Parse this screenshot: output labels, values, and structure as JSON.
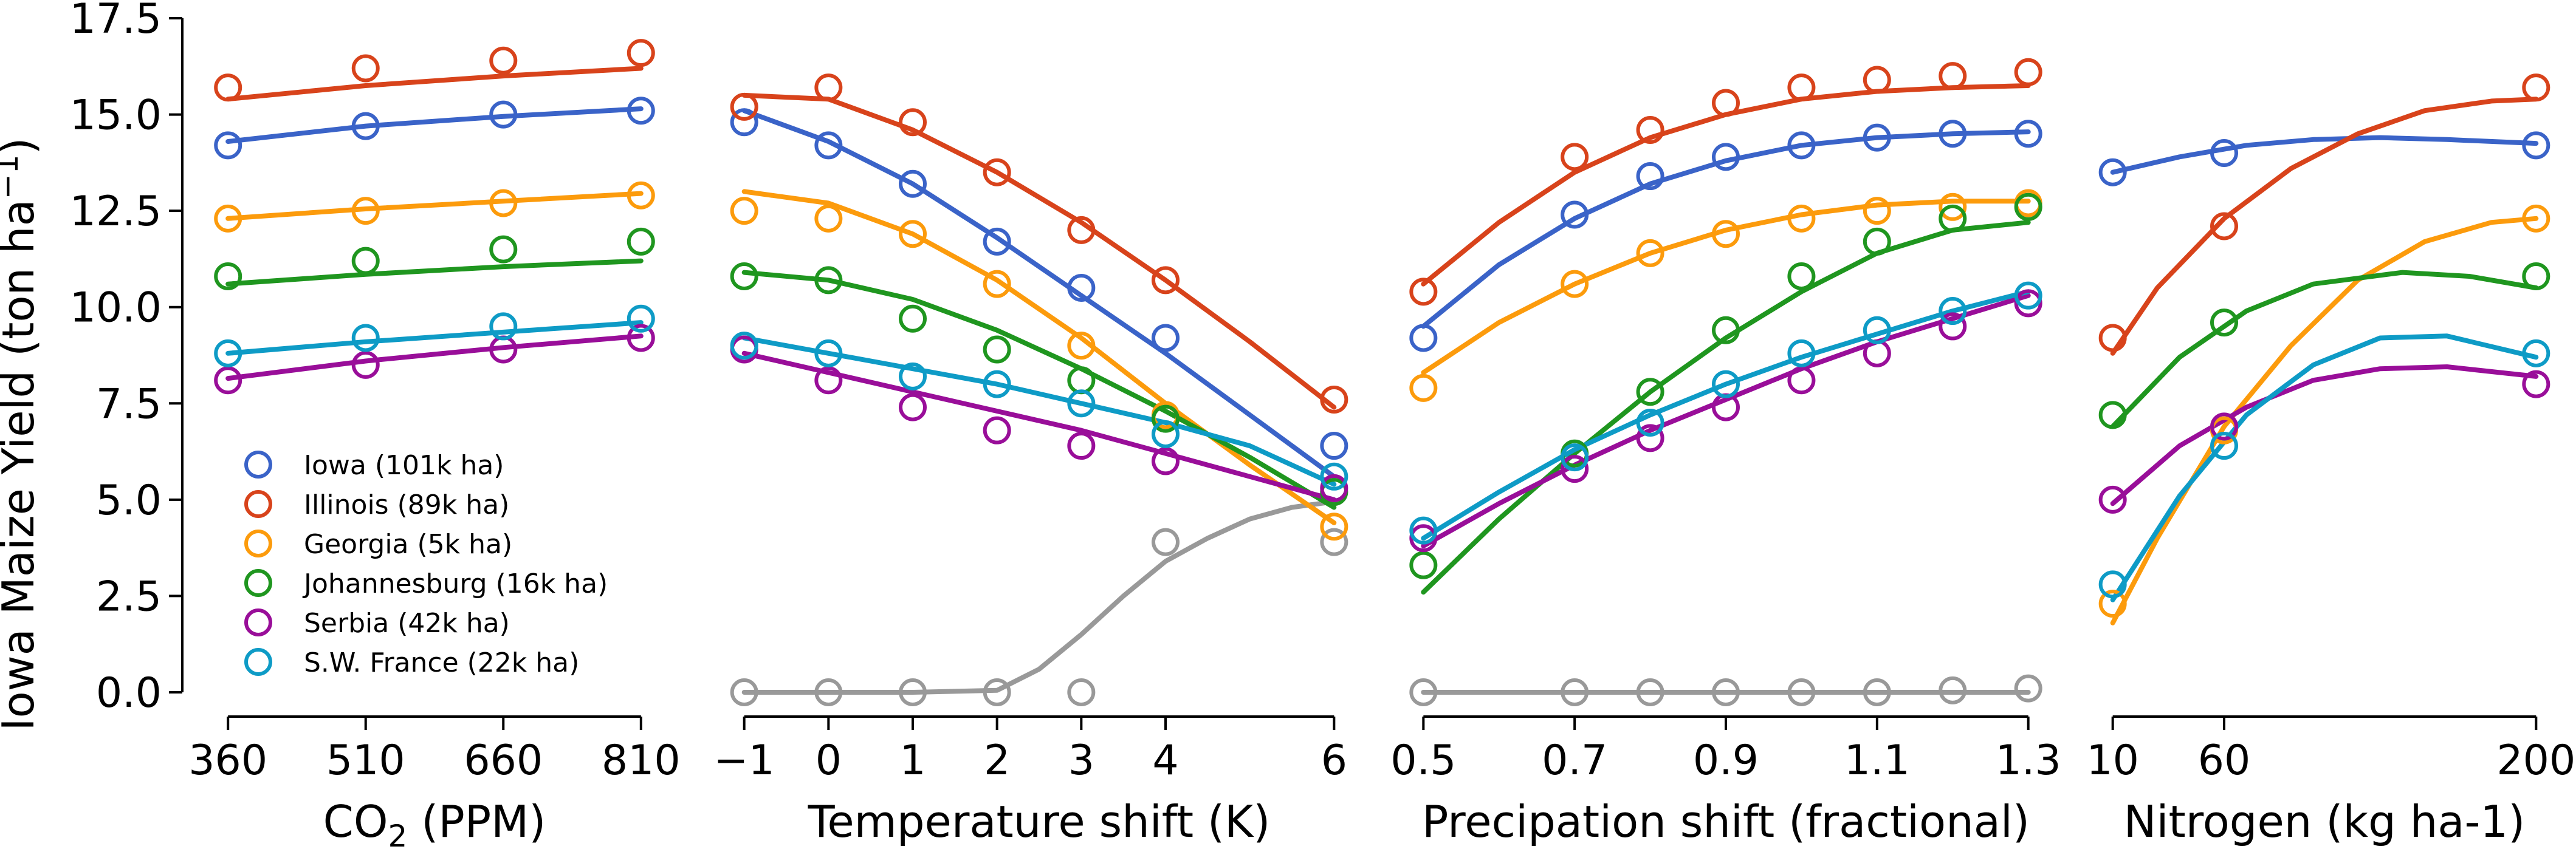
{
  "chart_data": {
    "type": "scatter",
    "ylabel": "Iowa Maize Yield (ton ha",
    "ylabel_sup": "−1",
    "ylabel_close": ")",
    "ylim": [
      0,
      17.5
    ],
    "yticks": [
      0.0,
      2.5,
      5.0,
      7.5,
      10.0,
      12.5,
      15.0,
      17.5
    ],
    "ytick_labels": [
      "0.0",
      "2.5",
      "5.0",
      "7.5",
      "10.0",
      "12.5",
      "15.0",
      "17.5"
    ],
    "grid": false,
    "legend_position": "lower-left of first panel",
    "series": [
      {
        "name": "Iowa (101k ha)",
        "color": "#3a63c8"
      },
      {
        "name": "Illinois (89k ha)",
        "color": "#d8431b"
      },
      {
        "name": "Georgia (5k ha)",
        "color": "#fc9b0c"
      },
      {
        "name": "Johannesburg (16k ha)",
        "color": "#1f961f"
      },
      {
        "name": "Serbia (42k ha)",
        "color": "#990e99"
      },
      {
        "name": "S.W. France (22k ha)",
        "color": "#0e9bc6"
      }
    ],
    "extra_series_color": "#999999",
    "panels": [
      {
        "xlabel_main": "CO",
        "xlabel_sub": "2",
        "xlabel_rest": " (PPM)",
        "xlim": [
          340,
          830
        ],
        "xticks": [
          360,
          510,
          660,
          810
        ],
        "xtick_labels": [
          "360",
          "510",
          "660",
          "810"
        ],
        "x": [
          360,
          510,
          660,
          810
        ],
        "points": [
          [
            14.2,
            14.7,
            15.0,
            15.1
          ],
          [
            15.7,
            16.2,
            16.4,
            16.6
          ],
          [
            12.3,
            12.5,
            12.7,
            12.9
          ],
          [
            10.8,
            11.2,
            11.5,
            11.7
          ],
          [
            8.1,
            8.5,
            8.9,
            9.2
          ],
          [
            8.8,
            9.2,
            9.5,
            9.7
          ]
        ],
        "fits": [
          [
            [
              360,
              14.3
            ],
            [
              510,
              14.7
            ],
            [
              660,
              14.95
            ],
            [
              810,
              15.15
            ]
          ],
          [
            [
              360,
              15.4
            ],
            [
              510,
              15.75
            ],
            [
              660,
              16.0
            ],
            [
              810,
              16.2
            ]
          ],
          [
            [
              360,
              12.3
            ],
            [
              510,
              12.55
            ],
            [
              660,
              12.75
            ],
            [
              810,
              12.95
            ]
          ],
          [
            [
              360,
              10.6
            ],
            [
              510,
              10.85
            ],
            [
              660,
              11.05
            ],
            [
              810,
              11.2
            ]
          ],
          [
            [
              360,
              8.15
            ],
            [
              510,
              8.6
            ],
            [
              660,
              8.95
            ],
            [
              810,
              9.25
            ]
          ],
          [
            [
              360,
              8.8
            ],
            [
              510,
              9.1
            ],
            [
              660,
              9.35
            ],
            [
              810,
              9.6
            ]
          ]
        ],
        "extra_points": [],
        "extra_fit": []
      },
      {
        "xlabel_main": "Temperature shift (K)",
        "xlabel_sub": "",
        "xlabel_rest": "",
        "xlim": [
          -1.25,
          6.25
        ],
        "xticks": [
          -1,
          0,
          1,
          2,
          3,
          4,
          6
        ],
        "xtick_labels": [
          "−1",
          "0",
          "1",
          "2",
          "3",
          "4",
          "6"
        ],
        "x": [
          -1,
          0,
          1,
          2,
          3,
          4,
          6
        ],
        "points": [
          [
            14.8,
            14.2,
            13.2,
            11.7,
            10.5,
            9.2,
            6.4
          ],
          [
            15.2,
            15.7,
            14.8,
            13.5,
            12.0,
            10.7,
            7.6
          ],
          [
            12.5,
            12.3,
            11.9,
            10.6,
            9.0,
            7.2,
            4.3
          ],
          [
            10.8,
            10.7,
            9.7,
            8.9,
            8.1,
            7.1,
            5.2
          ],
          [
            8.9,
            8.1,
            7.4,
            6.8,
            6.4,
            6.0,
            5.3
          ],
          [
            9.0,
            8.8,
            8.2,
            8.0,
            7.5,
            6.7,
            5.6
          ]
        ],
        "fits": [
          [
            [
              -1,
              15.1
            ],
            [
              0,
              14.3
            ],
            [
              1,
              13.2
            ],
            [
              2,
              11.8
            ],
            [
              3,
              10.3
            ],
            [
              4,
              8.8
            ],
            [
              5,
              7.2
            ],
            [
              6,
              5.6
            ]
          ],
          [
            [
              -1,
              15.5
            ],
            [
              0,
              15.4
            ],
            [
              1,
              14.6
            ],
            [
              2,
              13.5
            ],
            [
              3,
              12.2
            ],
            [
              4,
              10.7
            ],
            [
              5,
              9.1
            ],
            [
              6,
              7.4
            ]
          ],
          [
            [
              -1,
              13.0
            ],
            [
              0,
              12.7
            ],
            [
              1,
              11.9
            ],
            [
              2,
              10.7
            ],
            [
              3,
              9.2
            ],
            [
              4,
              7.5
            ],
            [
              5,
              5.9
            ],
            [
              6,
              4.4
            ]
          ],
          [
            [
              -1,
              10.9
            ],
            [
              0,
              10.7
            ],
            [
              1,
              10.2
            ],
            [
              2,
              9.4
            ],
            [
              3,
              8.4
            ],
            [
              4,
              7.3
            ],
            [
              5,
              6.1
            ],
            [
              6,
              4.8
            ]
          ],
          [
            [
              -1,
              8.8
            ],
            [
              0,
              8.3
            ],
            [
              1,
              7.8
            ],
            [
              2,
              7.3
            ],
            [
              3,
              6.8
            ],
            [
              4,
              6.2
            ],
            [
              5,
              5.6
            ],
            [
              6,
              5.0
            ]
          ],
          [
            [
              -1,
              9.2
            ],
            [
              0,
              8.8
            ],
            [
              1,
              8.4
            ],
            [
              2,
              8.0
            ],
            [
              3,
              7.5
            ],
            [
              4,
              7.0
            ],
            [
              5,
              6.4
            ],
            [
              6,
              5.4
            ]
          ]
        ],
        "extra_points": [
          0.0,
          0.0,
          0.0,
          0.0,
          0.0,
          3.9,
          3.9
        ],
        "extra_fit": [
          [
            -1,
            0.0
          ],
          [
            0,
            0.0
          ],
          [
            1,
            0.0
          ],
          [
            2,
            0.05
          ],
          [
            2.5,
            0.6
          ],
          [
            3,
            1.5
          ],
          [
            3.5,
            2.5
          ],
          [
            4,
            3.4
          ],
          [
            4.5,
            4.0
          ],
          [
            5,
            4.5
          ],
          [
            5.5,
            4.8
          ],
          [
            6,
            4.95
          ]
        ]
      },
      {
        "xlabel_main": "Precipation shift (fractional)",
        "xlabel_sub": "",
        "xlabel_rest": "",
        "xlim": [
          0.47,
          1.33
        ],
        "xticks": [
          0.5,
          0.7,
          0.9,
          1.1,
          1.3
        ],
        "xtick_labels": [
          "0.5",
          "0.7",
          "0.9",
          "1.1",
          "1.3"
        ],
        "x": [
          0.5,
          0.7,
          0.8,
          0.9,
          1.0,
          1.1,
          1.2,
          1.3
        ],
        "points": [
          [
            9.2,
            12.4,
            13.4,
            13.9,
            14.2,
            14.4,
            14.5,
            14.5
          ],
          [
            10.4,
            13.9,
            14.6,
            15.3,
            15.7,
            15.9,
            16.0,
            16.1
          ],
          [
            7.9,
            10.6,
            11.4,
            11.9,
            12.3,
            12.5,
            12.6,
            12.7
          ],
          [
            3.3,
            6.2,
            7.8,
            9.4,
            10.8,
            11.7,
            12.3,
            12.6
          ],
          [
            4.0,
            5.8,
            6.6,
            7.4,
            8.1,
            8.8,
            9.5,
            10.1
          ],
          [
            4.2,
            6.1,
            7.0,
            8.0,
            8.8,
            9.4,
            9.9,
            10.3
          ]
        ],
        "fits": [
          [
            [
              0.5,
              9.5
            ],
            [
              0.6,
              11.1
            ],
            [
              0.7,
              12.3
            ],
            [
              0.8,
              13.2
            ],
            [
              0.9,
              13.8
            ],
            [
              1.0,
              14.2
            ],
            [
              1.1,
              14.4
            ],
            [
              1.2,
              14.5
            ],
            [
              1.3,
              14.55
            ]
          ],
          [
            [
              0.5,
              10.6
            ],
            [
              0.6,
              12.2
            ],
            [
              0.7,
              13.5
            ],
            [
              0.8,
              14.4
            ],
            [
              0.9,
              15.0
            ],
            [
              1.0,
              15.4
            ],
            [
              1.1,
              15.6
            ],
            [
              1.2,
              15.7
            ],
            [
              1.3,
              15.75
            ]
          ],
          [
            [
              0.5,
              8.3
            ],
            [
              0.6,
              9.6
            ],
            [
              0.7,
              10.6
            ],
            [
              0.8,
              11.4
            ],
            [
              0.9,
              12.0
            ],
            [
              1.0,
              12.4
            ],
            [
              1.1,
              12.65
            ],
            [
              1.2,
              12.75
            ],
            [
              1.3,
              12.75
            ]
          ],
          [
            [
              0.5,
              2.6
            ],
            [
              0.6,
              4.5
            ],
            [
              0.7,
              6.2
            ],
            [
              0.8,
              7.8
            ],
            [
              0.9,
              9.2
            ],
            [
              1.0,
              10.4
            ],
            [
              1.1,
              11.4
            ],
            [
              1.2,
              12.0
            ],
            [
              1.3,
              12.2
            ]
          ],
          [
            [
              0.5,
              3.8
            ],
            [
              0.6,
              4.9
            ],
            [
              0.7,
              5.9
            ],
            [
              0.8,
              6.8
            ],
            [
              0.9,
              7.6
            ],
            [
              1.0,
              8.4
            ],
            [
              1.1,
              9.1
            ],
            [
              1.2,
              9.7
            ],
            [
              1.3,
              10.3
            ]
          ],
          [
            [
              0.5,
              4.0
            ],
            [
              0.6,
              5.2
            ],
            [
              0.7,
              6.3
            ],
            [
              0.8,
              7.2
            ],
            [
              0.9,
              8.0
            ],
            [
              1.0,
              8.7
            ],
            [
              1.1,
              9.3
            ],
            [
              1.2,
              9.9
            ],
            [
              1.3,
              10.4
            ]
          ]
        ],
        "extra_points": [
          0.0,
          0.0,
          0.0,
          0.0,
          0.0,
          0.0,
          0.05,
          0.1
        ],
        "extra_fit": [
          [
            0.5,
            0.0
          ],
          [
            1.3,
            0.0
          ]
        ]
      },
      {
        "xlabel_main": "Nitrogen (kg ha-1)",
        "xlabel_sub": "",
        "xlabel_rest": "",
        "xlim": [
          0,
          210
        ],
        "xticks": [
          10,
          60,
          200
        ],
        "xtick_labels": [
          "10",
          "60",
          "200"
        ],
        "x": [
          10,
          60,
          200
        ],
        "points": [
          [
            13.5,
            14.0,
            14.2
          ],
          [
            9.2,
            12.1,
            15.7
          ],
          [
            2.3,
            6.8,
            12.3
          ],
          [
            7.2,
            9.6,
            10.8
          ],
          [
            5.0,
            6.9,
            8.0
          ],
          [
            2.8,
            6.4,
            8.8
          ]
        ],
        "fits": [
          [
            [
              10,
              13.5
            ],
            [
              40,
              13.9
            ],
            [
              70,
              14.2
            ],
            [
              100,
              14.35
            ],
            [
              130,
              14.4
            ],
            [
              160,
              14.35
            ],
            [
              200,
              14.25
            ]
          ],
          [
            [
              10,
              8.8
            ],
            [
              30,
              10.5
            ],
            [
              60,
              12.3
            ],
            [
              90,
              13.6
            ],
            [
              120,
              14.5
            ],
            [
              150,
              15.1
            ],
            [
              180,
              15.35
            ],
            [
              200,
              15.4
            ]
          ],
          [
            [
              10,
              1.8
            ],
            [
              30,
              4.0
            ],
            [
              60,
              6.9
            ],
            [
              90,
              9.0
            ],
            [
              120,
              10.7
            ],
            [
              150,
              11.7
            ],
            [
              180,
              12.2
            ],
            [
              200,
              12.3
            ]
          ],
          [
            [
              10,
              6.9
            ],
            [
              40,
              8.7
            ],
            [
              70,
              9.9
            ],
            [
              100,
              10.6
            ],
            [
              140,
              10.9
            ],
            [
              170,
              10.8
            ],
            [
              200,
              10.5
            ]
          ],
          [
            [
              10,
              4.9
            ],
            [
              40,
              6.4
            ],
            [
              70,
              7.4
            ],
            [
              100,
              8.1
            ],
            [
              130,
              8.4
            ],
            [
              160,
              8.45
            ],
            [
              200,
              8.2
            ]
          ],
          [
            [
              10,
              2.4
            ],
            [
              40,
              5.1
            ],
            [
              70,
              7.2
            ],
            [
              100,
              8.5
            ],
            [
              130,
              9.2
            ],
            [
              160,
              9.25
            ],
            [
              200,
              8.7
            ]
          ]
        ],
        "extra_points": [],
        "extra_fit": []
      }
    ]
  }
}
